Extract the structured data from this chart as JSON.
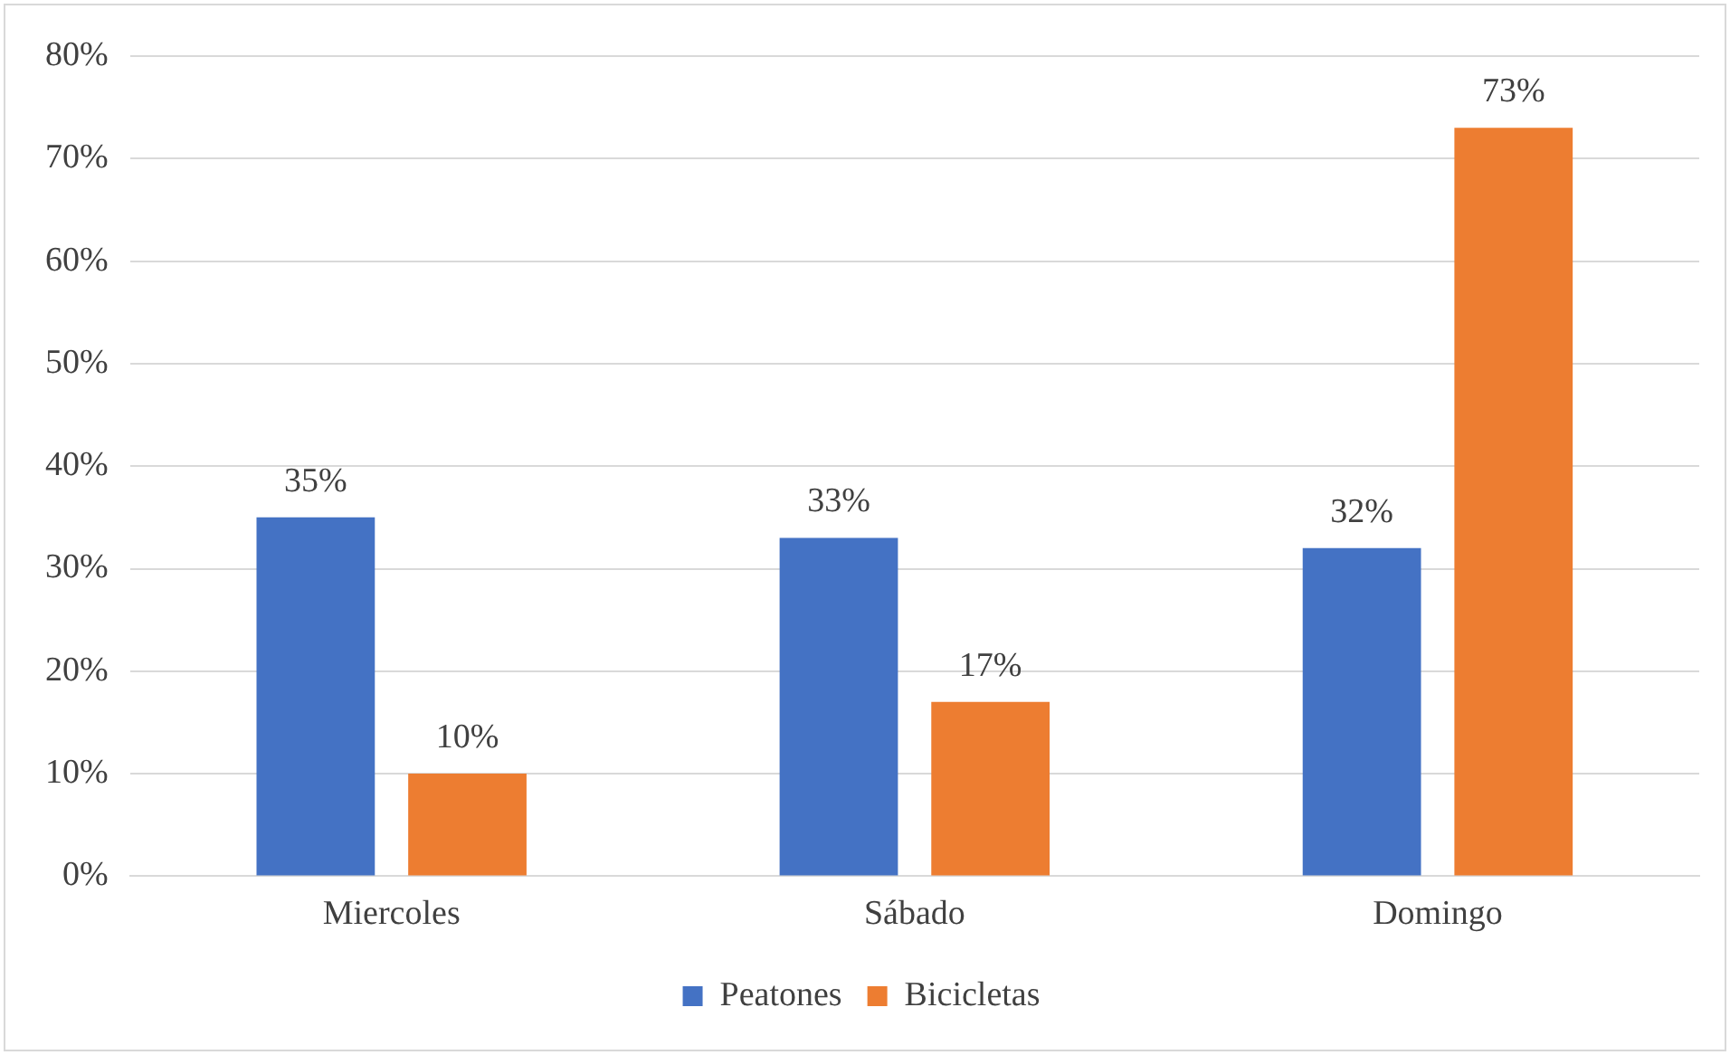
{
  "chart_data": {
    "type": "bar",
    "categories": [
      "Miercoles",
      "Sábado",
      "Domingo"
    ],
    "series": [
      {
        "name": "Peatones",
        "color": "#4472c4",
        "values": [
          35,
          33,
          32
        ],
        "value_labels": [
          "35%",
          "33%",
          "32%"
        ]
      },
      {
        "name": "Bicicletas",
        "color": "#ed7d31",
        "values": [
          10,
          17,
          73
        ],
        "value_labels": [
          "10%",
          "17%",
          "73%"
        ]
      }
    ],
    "ylim": [
      0,
      80
    ],
    "yticks": [
      {
        "value": 0,
        "label": "0%"
      },
      {
        "value": 10,
        "label": "10%"
      },
      {
        "value": 20,
        "label": "20%"
      },
      {
        "value": 30,
        "label": "30%"
      },
      {
        "value": 40,
        "label": "40%"
      },
      {
        "value": 50,
        "label": "50%"
      },
      {
        "value": 60,
        "label": "60%"
      },
      {
        "value": 70,
        "label": "70%"
      },
      {
        "value": 80,
        "label": "80%"
      }
    ],
    "grid": "y",
    "legend": "bottom"
  }
}
